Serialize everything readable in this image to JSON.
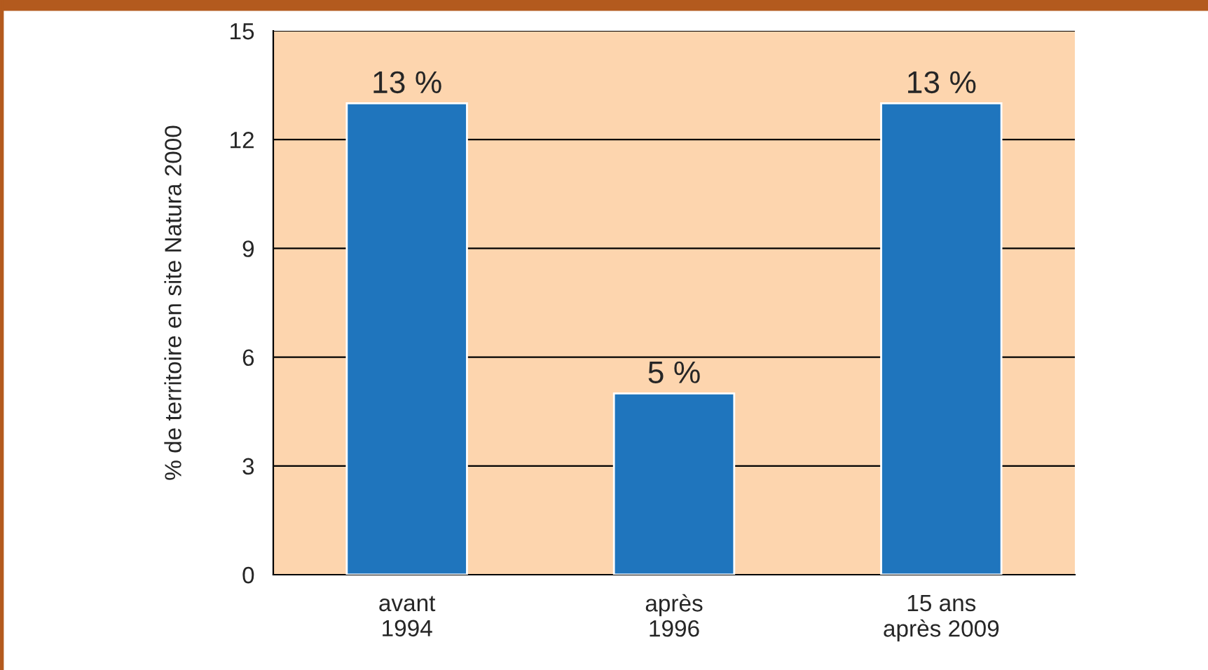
{
  "chart_data": {
    "type": "bar",
    "categories": [
      "avant\n1994",
      "après\n1996",
      "15 ans\naprès 2009"
    ],
    "series": [
      {
        "color": "#1f75bd",
        "values": [
          13,
          5,
          13
        ],
        "value_labels": [
          "13 %",
          "5 %",
          "13 %"
        ]
      }
    ],
    "ylabel": "% de territoire en site Natura 2000",
    "ylim": [
      0,
      15
    ],
    "yticks": [
      0,
      3,
      6,
      9,
      12,
      15
    ],
    "grid": "y",
    "legend": false
  }
}
